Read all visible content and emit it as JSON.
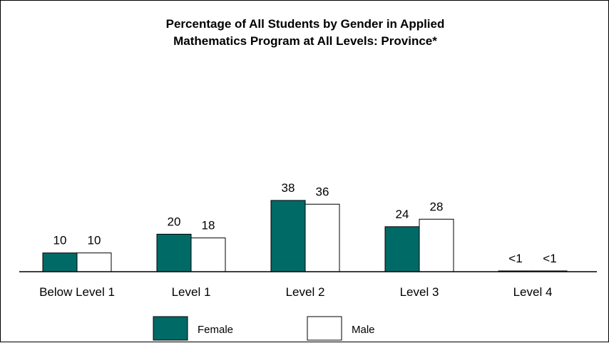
{
  "chart_data": {
    "type": "bar",
    "title": [
      "Percentage of All Students by Gender in Applied",
      "Mathematics Program at All Levels: Province*"
    ],
    "categories": [
      "Below Level 1",
      "Level 1",
      "Level 2",
      "Level 3",
      "Level 4"
    ],
    "series": [
      {
        "name": "Female",
        "values": [
          10,
          20,
          38,
          24,
          0.4
        ],
        "labels": [
          "10",
          "20",
          "38",
          "24",
          "<1"
        ],
        "color": "#006a66"
      },
      {
        "name": "Male",
        "values": [
          10,
          18,
          36,
          28,
          0.4
        ],
        "labels": [
          "10",
          "18",
          "36",
          "28",
          "<1"
        ],
        "color": "#ffffff"
      }
    ],
    "ylim": [
      0,
      100
    ],
    "grid": false,
    "legend": "bottom"
  }
}
